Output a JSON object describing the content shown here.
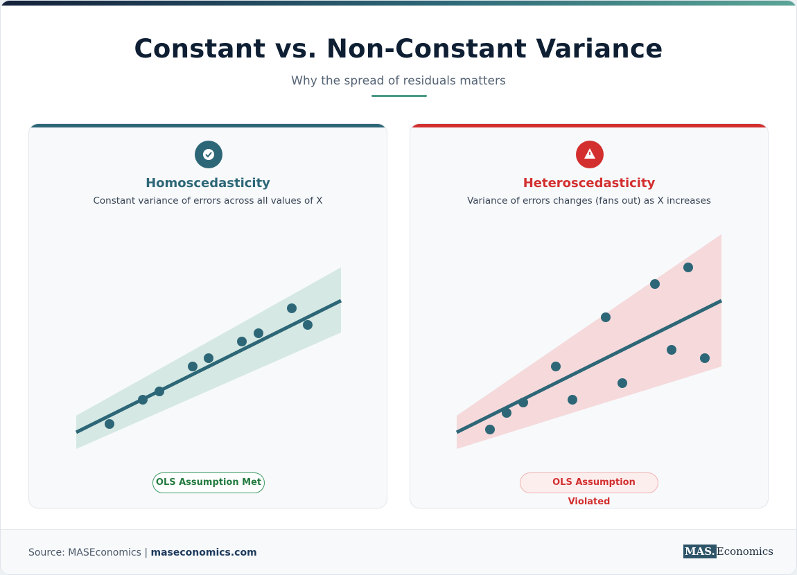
{
  "header": {
    "title": "Constant vs. Non-Constant Variance",
    "subtitle": "Why the spread of residuals matters"
  },
  "panels": [
    {
      "title": "Homoscedasticity",
      "description": "Constant variance of errors across all values of X",
      "badge": "OLS Assumption Met"
    },
    {
      "title": "Heteroscedasticity",
      "description": "Variance of errors changes (fans out) as X increases",
      "badge": "OLS Assumption Violated"
    }
  ],
  "footer": {
    "source": "Source: MASEconomics",
    "separator": "|",
    "link": "maseconomics.com"
  },
  "logo": {
    "mark": "MAS.",
    "name": "Economics"
  }
}
